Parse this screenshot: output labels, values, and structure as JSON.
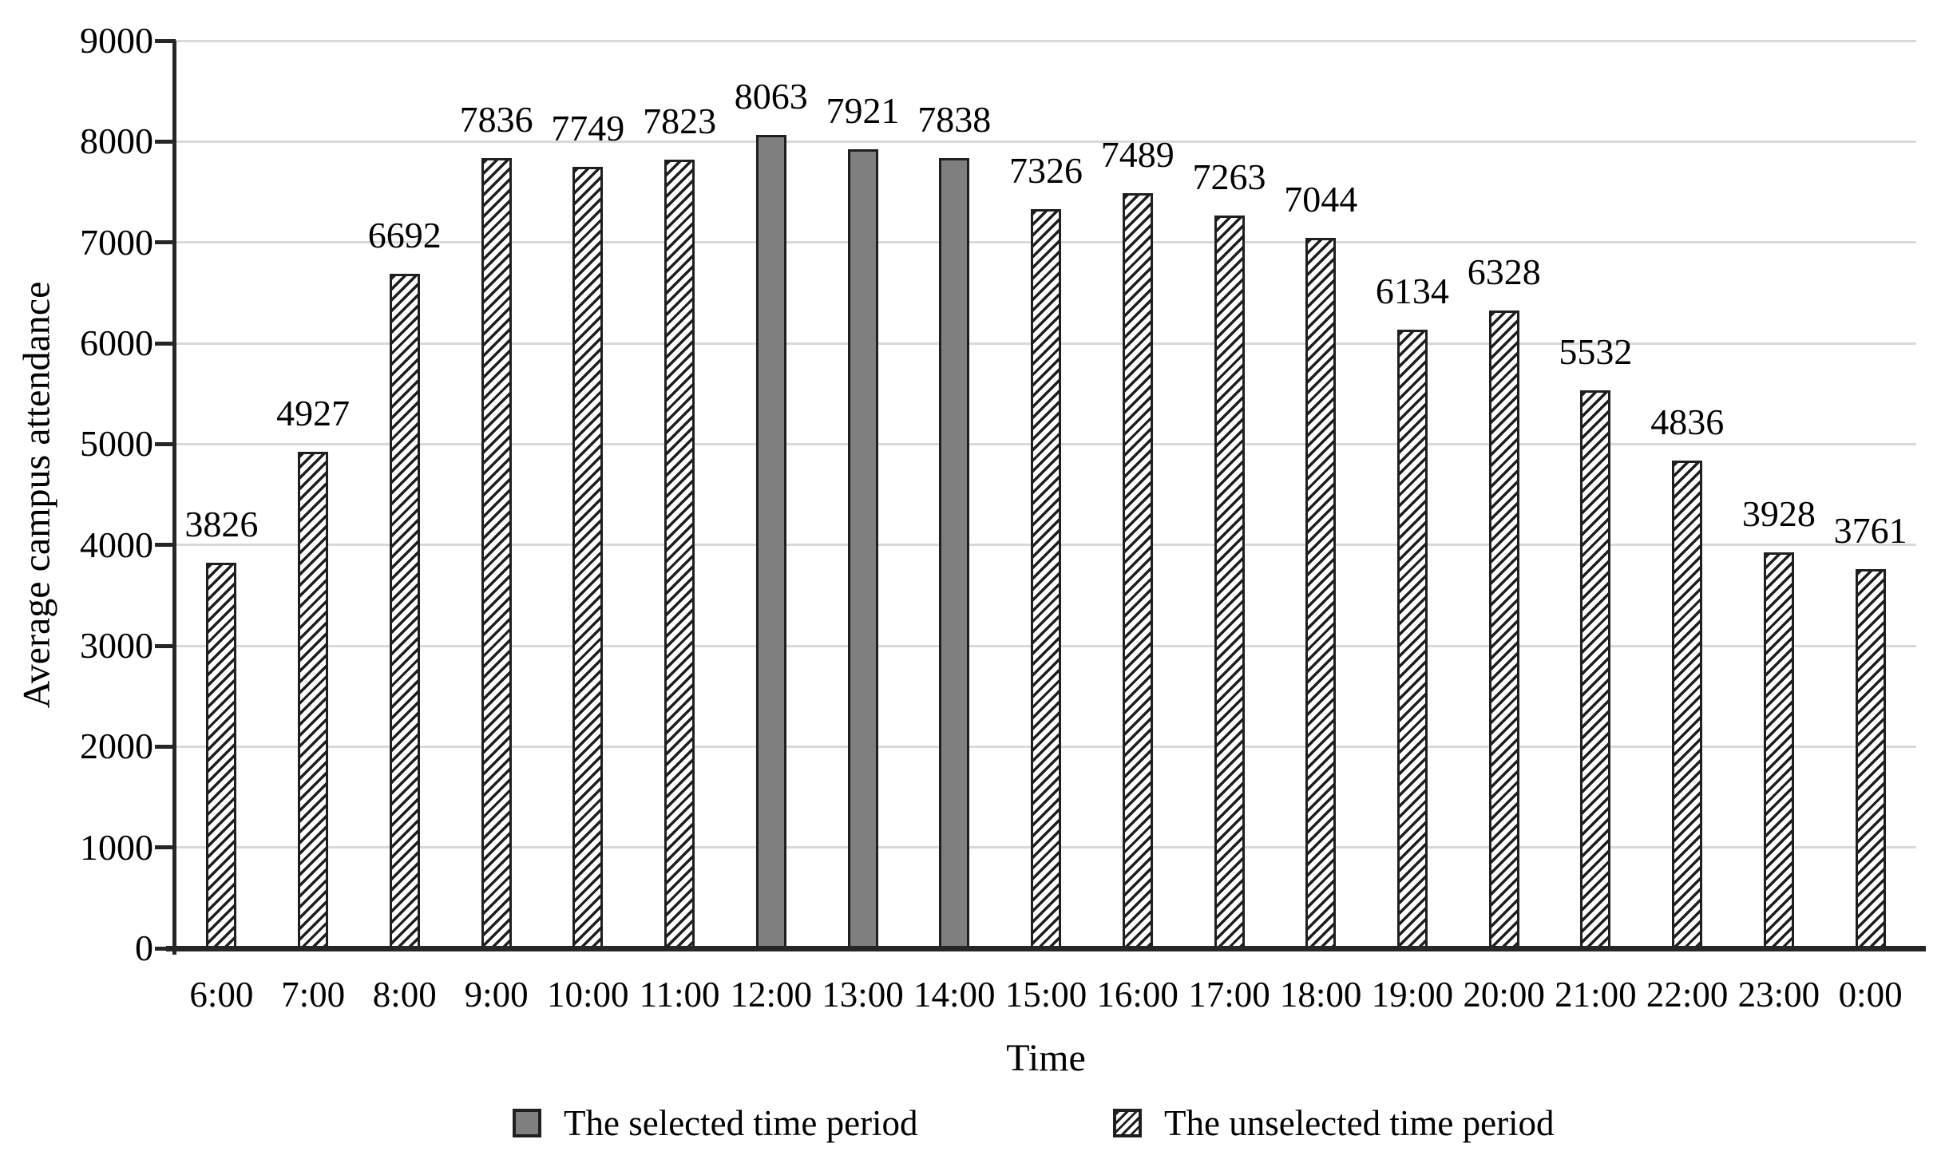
{
  "chart_data": {
    "type": "bar",
    "title": "",
    "xlabel": "Time",
    "ylabel": "Average campus attendance",
    "ylim": [
      0,
      9000
    ],
    "yticks": [
      0,
      1000,
      2000,
      3000,
      4000,
      5000,
      6000,
      7000,
      8000,
      9000
    ],
    "grid": true,
    "legend_position": "bottom",
    "categories": [
      "6:00",
      "7:00",
      "8:00",
      "9:00",
      "10:00",
      "11:00",
      "12:00",
      "13:00",
      "14:00",
      "15:00",
      "16:00",
      "17:00",
      "18:00",
      "19:00",
      "20:00",
      "21:00",
      "22:00",
      "23:00",
      "0:00"
    ],
    "values": [
      3826,
      4927,
      6692,
      7836,
      7749,
      7823,
      8063,
      7921,
      7838,
      7326,
      7489,
      7263,
      7044,
      6134,
      6328,
      5532,
      4836,
      3928,
      3761
    ],
    "selected_indices": [
      6,
      7,
      8
    ],
    "data_labels_visible": true
  },
  "legend": {
    "items": [
      {
        "label": "The selected time period",
        "swatch": "selected"
      },
      {
        "label": "The unselected time period",
        "swatch": "unselected"
      }
    ]
  },
  "colors": {
    "selected_fill": "#7f7f7f",
    "bar_border": "#1f1f1f",
    "gridline": "#d9d9d9",
    "axis": "#262626",
    "text": "#000000",
    "background": "#ffffff"
  }
}
